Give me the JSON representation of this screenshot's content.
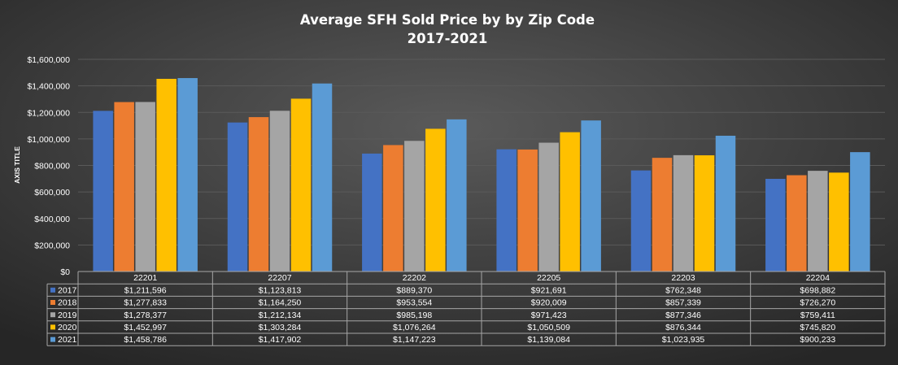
{
  "chart_data": {
    "type": "bar",
    "title": "Average SFH Sold Price by by Zip Code",
    "subtitle": "2017-2021",
    "ylabel": "AXIS TITLE",
    "xlabel": "",
    "ylim": [
      0,
      1600000
    ],
    "yticks": [
      0,
      200000,
      400000,
      600000,
      800000,
      1000000,
      1200000,
      1400000,
      1600000
    ],
    "ytick_labels": [
      "$0",
      "$200,000",
      "$400,000",
      "$600,000",
      "$800,000",
      "$1,000,000",
      "$1,200,000",
      "$1,400,000",
      "$1,600,000"
    ],
    "grid": true,
    "legend": "in data table",
    "categories": [
      "22201",
      "22207",
      "22202",
      "22205",
      "22203",
      "22204"
    ],
    "series": [
      {
        "name": "2017",
        "color": "#4472c4",
        "values": [
          1211596,
          1123813,
          889370,
          921691,
          762348,
          698882
        ],
        "labels": [
          "$1,211,596",
          "$1,123,813",
          "$889,370",
          "$921,691",
          "$762,348",
          "$698,882"
        ]
      },
      {
        "name": "2018",
        "color": "#ed7d31",
        "values": [
          1277833,
          1164250,
          953554,
          920009,
          857339,
          726270
        ],
        "labels": [
          "$1,277,833",
          "$1,164,250",
          "$953,554",
          "$920,009",
          "$857,339",
          "$726,270"
        ]
      },
      {
        "name": "2019",
        "color": "#a5a5a5",
        "values": [
          1278377,
          1212134,
          985198,
          971423,
          877346,
          759411
        ],
        "labels": [
          "$1,278,377",
          "$1,212,134",
          "$985,198",
          "$971,423",
          "$877,346",
          "$759,411"
        ]
      },
      {
        "name": "2020",
        "color": "#ffc000",
        "values": [
          1452997,
          1303284,
          1076264,
          1050509,
          876344,
          745820
        ],
        "labels": [
          "$1,452,997",
          "$1,303,284",
          "$1,076,264",
          "$1,050,509",
          "$876,344",
          "$745,820"
        ]
      },
      {
        "name": "2021",
        "color": "#5b9bd5",
        "values": [
          1458786,
          1417902,
          1147223,
          1139084,
          1023935,
          900233
        ],
        "labels": [
          "$1,458,786",
          "$1,417,902",
          "$1,147,223",
          "$1,139,084",
          "$1,023,935",
          "$900,233"
        ]
      }
    ]
  }
}
